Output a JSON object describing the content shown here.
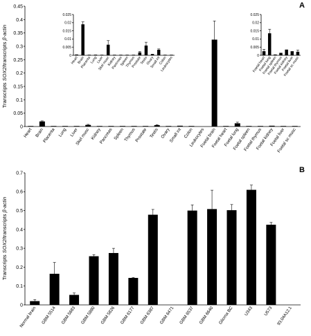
{
  "panels": [
    {
      "letter": "A",
      "ylabel": "Transcripts SOX2/transcripts β-actin",
      "ylim": [
        0,
        0.45
      ],
      "yticks": [
        "0",
        "0.05",
        "0.1",
        "0.15",
        "0.2",
        "0.25",
        "0.3",
        "0.35",
        "0.4",
        "0.45"
      ]
    },
    {
      "letter": "B",
      "ylabel": "Transcripts SOX2/transcripts β-actin",
      "ylim": [
        0,
        0.7
      ],
      "yticks": [
        "0",
        "0.1",
        "0.2",
        "0.3",
        "0.4",
        "0.5",
        "0.6",
        "0.7"
      ]
    }
  ],
  "chart_data": [
    {
      "type": "bar",
      "panel": "A",
      "categories": [
        "Heart",
        "Brain",
        "Placenta",
        "Lung",
        "Liver",
        "Skel musc",
        "Kidney",
        "Pancreas",
        "Spleen",
        "Thymus",
        "Prostate",
        "Testis",
        "Ovary",
        "Small int",
        "Colon",
        "Leukocytes",
        "Foetal brain",
        "Foetal heart",
        "Foetal lung",
        "Foetal spleen",
        "Foetal thymus",
        "Foetal kidney",
        "Foetal liver",
        "Foetal sc musc"
      ],
      "values": [
        0.001,
        0.019,
        0.001,
        0.001,
        0.001,
        0.006,
        0.001,
        0.001,
        0.001,
        0.001,
        0.002,
        0.005,
        0.001,
        0.003,
        0.001,
        0.0,
        0.325,
        0.002,
        0.012,
        0.001,
        0.001,
        0.003,
        0.002,
        0.002
      ],
      "errors": [
        0.0,
        0.002,
        0.0,
        0.0,
        0.0,
        0.002,
        0.0,
        0.0,
        0.0,
        0.0,
        0.0,
        0.002,
        0.0,
        0.0,
        0.0,
        0.0,
        0.07,
        0.0,
        0.004,
        0.0,
        0.0,
        0.0,
        0.0,
        0.0
      ],
      "ylim": [
        0,
        0.45
      ],
      "insets": [
        {
          "categories": [
            "Heart",
            "Brain",
            "Placenta",
            "Lung",
            "Liver",
            "Skel musc",
            "Kidney",
            "Pancreas",
            "Spleen",
            "Thymus",
            "Prostate",
            "Testis",
            "Ovary",
            "Small int",
            "Colon",
            "Leukocytes"
          ],
          "values": [
            0.0005,
            0.019,
            0.0003,
            0.0004,
            0.0003,
            0.0065,
            0.0003,
            0.0002,
            0.0003,
            0.0003,
            0.0018,
            0.006,
            0.0008,
            0.0034,
            0.0003,
            0.0002
          ],
          "errors": [
            0.0,
            0.0015,
            0.0,
            0.0,
            0.0,
            0.0025,
            0.0,
            0.0,
            0.0,
            0.0,
            0.0005,
            0.002,
            0.0,
            0.0005,
            0.0,
            0.0
          ],
          "ylim": [
            0,
            0.025
          ],
          "yticks": [
            "0",
            "0.005",
            "0.01",
            "0.015",
            "0.02",
            "0.025"
          ]
        },
        {
          "categories": [
            "Foetal heart",
            "Foetal lung",
            "Foetal spleen",
            "Foetal thymus",
            "Foetal kidney",
            "Foetal liver",
            "Foetal sc musc"
          ],
          "values": [
            0.0025,
            0.0135,
            0.0005,
            0.0015,
            0.0035,
            0.0025,
            0.0022
          ],
          "errors": [
            0.0012,
            0.0025,
            0.0,
            0.0,
            0.0,
            0.0,
            0.001
          ],
          "ylim": [
            0,
            0.025
          ],
          "yticks": [
            "0",
            "0.005",
            "0.01",
            "0.015",
            "0.02",
            "0.025"
          ]
        }
      ]
    },
    {
      "type": "bar",
      "panel": "B",
      "categories": [
        "Normal brain",
        "GBM 5514",
        "GBM 5683",
        "GBM 5880",
        "GBM 5826",
        "GBM 6177",
        "GBM 6387",
        "GBM 6471",
        "GBM 6537",
        "GBM 6640",
        "Glioma BC",
        "U343",
        "U573",
        "93.04A12.1"
      ],
      "values": [
        0.02,
        0.165,
        0.053,
        0.258,
        0.275,
        0.143,
        0.478,
        0.0,
        0.5,
        0.508,
        0.502,
        0.61,
        0.425,
        0.0
      ],
      "errors": [
        0.008,
        0.06,
        0.01,
        0.008,
        0.025,
        0.002,
        0.028,
        0.0,
        0.03,
        0.1,
        0.03,
        0.025,
        0.012,
        0.0
      ],
      "ylim": [
        0,
        0.7
      ]
    }
  ]
}
